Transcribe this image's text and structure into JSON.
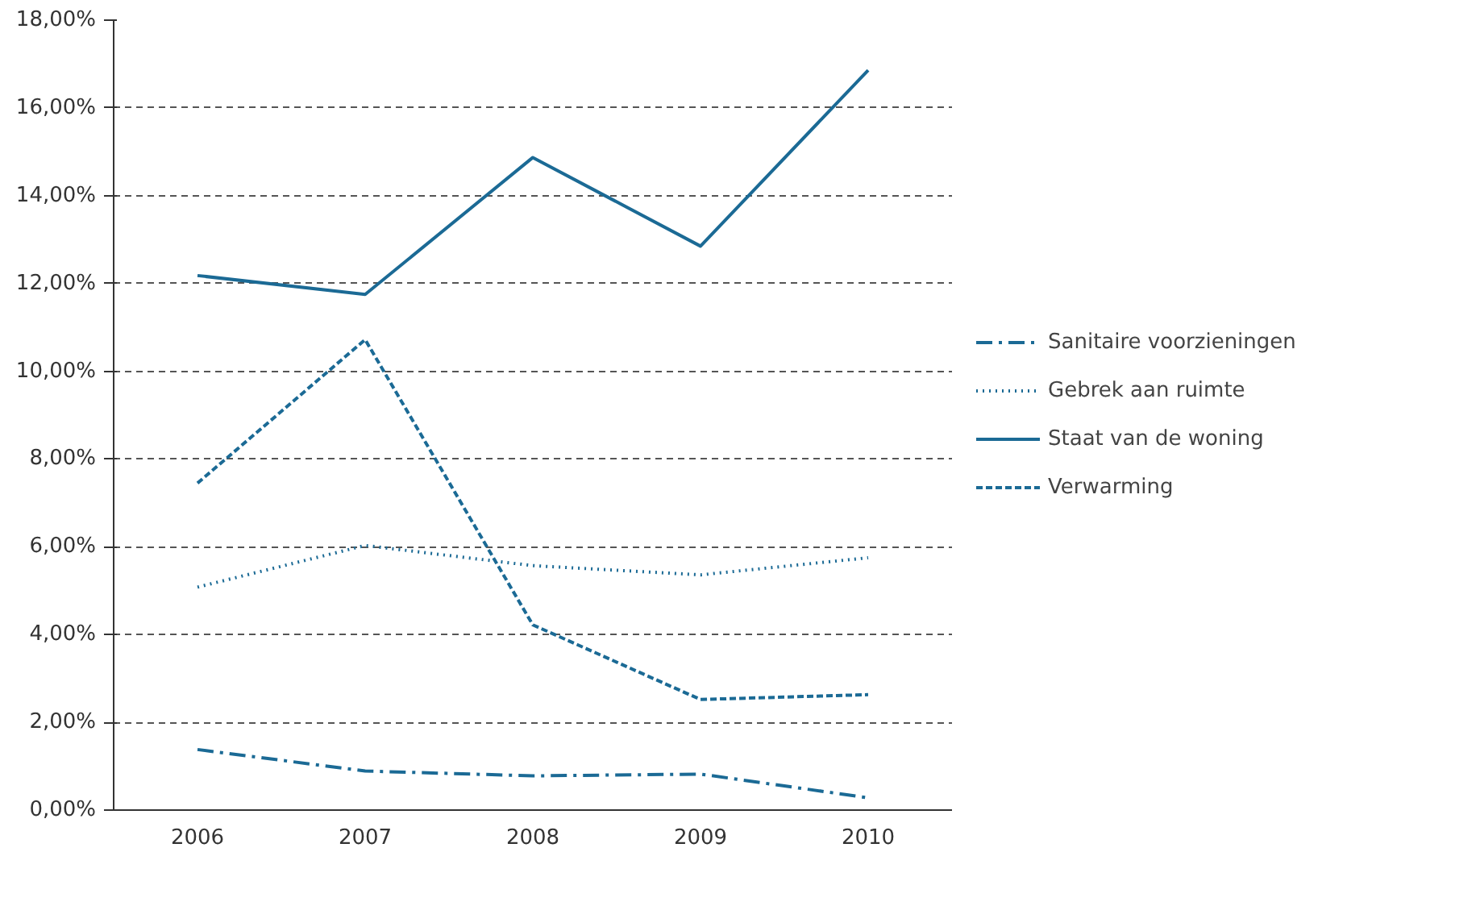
{
  "chart_data": {
    "type": "line",
    "categories": [
      "2006",
      "2007",
      "2008",
      "2009",
      "2010"
    ],
    "series": [
      {
        "name": "Sanitaire voorzieningen",
        "color": "#1b6a95",
        "line_style": "dashdot",
        "values": [
          1.38,
          0.89,
          0.78,
          0.82,
          0.28
        ]
      },
      {
        "name": "Gebrek aan ruimte",
        "color": "#1b6a95",
        "line_style": "dotted",
        "values": [
          5.08,
          6.03,
          5.57,
          5.36,
          5.75
        ]
      },
      {
        "name": "Staat van de woning",
        "color": "#1b6a95",
        "line_style": "solid",
        "values": [
          12.18,
          11.75,
          14.87,
          12.85,
          16.86
        ]
      },
      {
        "name": "Verwarming",
        "color": "#1b6a95",
        "line_style": "dashed",
        "values": [
          7.45,
          10.72,
          4.22,
          2.52,
          2.63
        ]
      }
    ],
    "ylim": [
      0,
      18
    ],
    "yticks": [
      {
        "value": 0,
        "label": "0,00%"
      },
      {
        "value": 2,
        "label": "2,00%"
      },
      {
        "value": 4,
        "label": "4,00%"
      },
      {
        "value": 6,
        "label": "6,00%"
      },
      {
        "value": 8,
        "label": "8,00%"
      },
      {
        "value": 10,
        "label": "10,00%"
      },
      {
        "value": 12,
        "label": "12,00%"
      },
      {
        "value": 14,
        "label": "14,00%"
      },
      {
        "value": 16,
        "label": "16,00%"
      },
      {
        "value": 18,
        "label": "18,00%"
      }
    ],
    "grid": "y",
    "legend": "right",
    "marker": "none"
  }
}
